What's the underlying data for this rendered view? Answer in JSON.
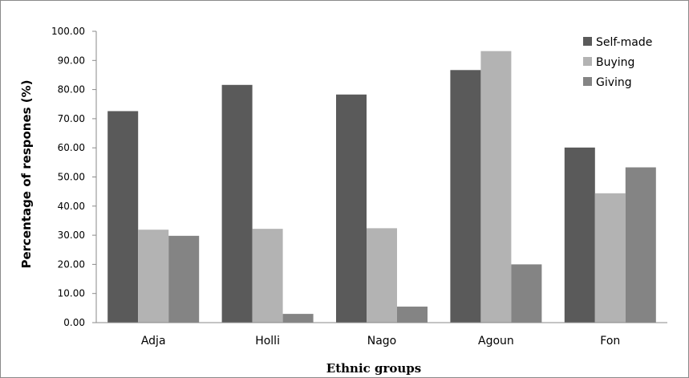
{
  "chart_data": {
    "type": "bar",
    "categories": [
      "Adja",
      "Holli",
      "Nago",
      "Agoun",
      "Fon"
    ],
    "series": [
      {
        "name": "Self-made",
        "color": "#5a5a5a",
        "values": [
          72.6,
          81.6,
          78.3,
          86.7,
          60.1
        ]
      },
      {
        "name": "Buying",
        "color": "#b3b3b3",
        "values": [
          31.9,
          32.2,
          32.4,
          93.2,
          44.4
        ]
      },
      {
        "name": "Giving",
        "color": "#848484",
        "values": [
          29.8,
          3.0,
          5.5,
          20.0,
          53.3
        ]
      }
    ],
    "title": "",
    "xlabel": "Ethnic groups",
    "ylabel": "Percentage of respones (%)",
    "ylim": [
      0,
      100
    ],
    "yticks": [
      "0.00",
      "10.00",
      "20.00",
      "30.00",
      "40.00",
      "50.00",
      "60.00",
      "70.00",
      "80.00",
      "90.00",
      "100.00"
    ],
    "grid": false,
    "legend_position": "top-right"
  }
}
